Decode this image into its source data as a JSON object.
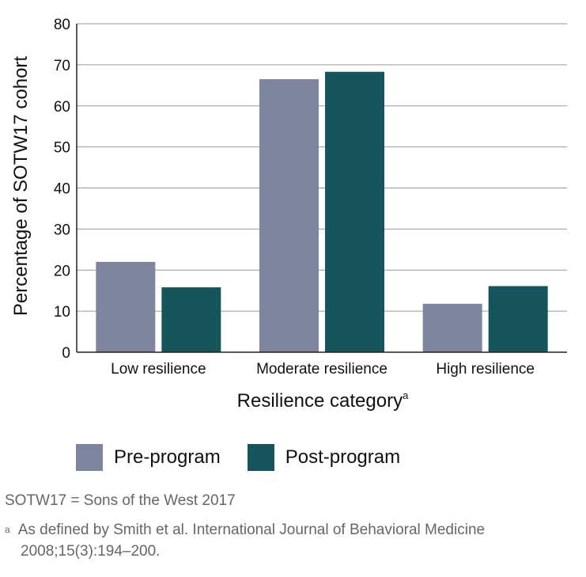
{
  "chart_data": {
    "type": "bar",
    "categories": [
      "Low resilience",
      "Moderate resilience",
      "High resilience"
    ],
    "series": [
      {
        "name": "Pre-program",
        "color": "#7e869f",
        "values": [
          22,
          66.5,
          11.8
        ]
      },
      {
        "name": "Post-program",
        "color": "#16555b",
        "values": [
          15.8,
          68.3,
          16.1
        ]
      }
    ],
    "xlabel": "Resilience category",
    "xlabel_superscript": "a",
    "ylabel": "Percentage of SOTW17 cohort",
    "ylim": [
      0,
      80
    ],
    "yticks": [
      "0",
      "10",
      "20",
      "30",
      "40",
      "50",
      "60",
      "70",
      "80"
    ],
    "grid": true,
    "legend_position": "bottom"
  },
  "footnotes": {
    "abbrev": "SOTW17 = Sons of the West 2017",
    "a_marker": "a",
    "a_line1": "As defined by Smith et al. International Journal of Behavioral Medicine",
    "a_line2": "2008;15(3):194–200."
  }
}
